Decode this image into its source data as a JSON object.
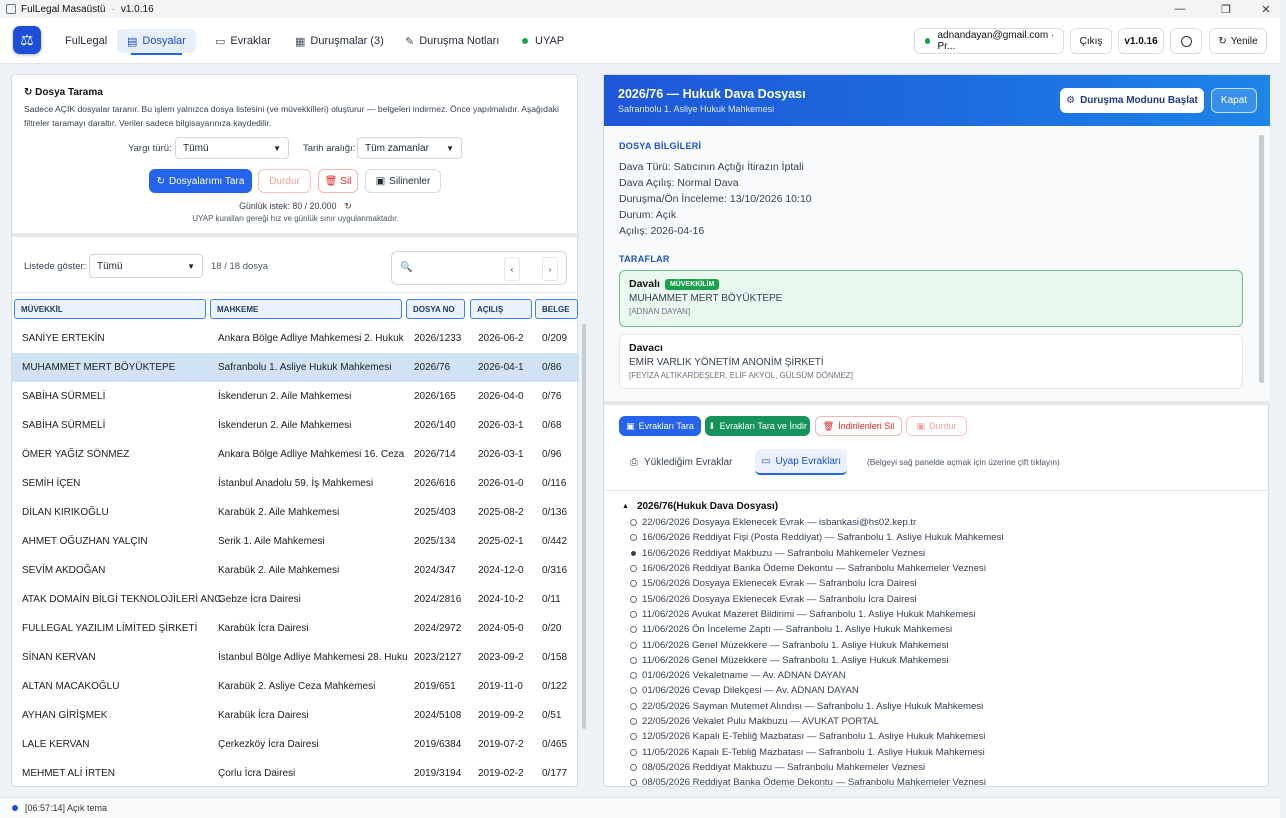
{
  "window": {
    "title": "FulLegal Masaüstü",
    "version": "v1.0.16"
  },
  "nav": {
    "brand": "FulLegal",
    "dosyalar": "Dosyalar",
    "evraklar": "Evraklar",
    "durusmalar": "Duruşmalar (3)",
    "notlar": "Duruşma Notları",
    "uyap": "UYAP",
    "user": "adnandayan@gmail.com · Pr...",
    "logout": "Çıkış",
    "version": "v1.0.16",
    "refresh": "Yenile"
  },
  "scan": {
    "title": "Dosya Tarama",
    "desc": "Sadece AÇIK dosyalar taranır. Bu işlem yalnızca dosya listesini (ve müvekkilleri) oluşturur — belgeleri indirmez. Önce yapılmalıdır. Aşağıdaki filtreler taramayı daraltır. Veriler sadece bilgisayarınıza kaydedilir.",
    "yargi_label": "Yargı türü:",
    "yargi_value": "Tümü",
    "tarih_label": "Tarih aralığı:",
    "tarih_value": "Tüm zamanlar",
    "btn_scan": "Dosyalarımı Tara",
    "btn_stop": "Durdur",
    "btn_delete": "Sil",
    "btn_deleted": "Silinenler",
    "daily": "Günlük istek: 80 / 20.000",
    "rule": "UYAP kuralları gereği hız ve günlük sınır uygulanmaktadır."
  },
  "list": {
    "show_label": "Listede göster:",
    "show_value": "Tümü",
    "count": "18 / 18 dosya",
    "headers": [
      "MÜVEKKİL",
      "MAHKEME",
      "DOSYA NO",
      "AÇILIŞ",
      "BELGE"
    ],
    "rows": [
      [
        "SANİYE ERTEKİN",
        "Ankara Bölge Adliye Mahkemesi 2. Hukuk",
        "2026/1233",
        "2026-06-2",
        "0/209"
      ],
      [
        "MUHAMMET MERT BÖYÜKTEPE",
        "Safranbolu 1. Asliye Hukuk Mahkemesi",
        "2026/76",
        "2026-04-1",
        "0/86"
      ],
      [
        "SABİHA SÜRMELİ",
        "İskenderun 2. Aile Mahkemesi",
        "2026/165",
        "2026-04-0",
        "0/76"
      ],
      [
        "SABİHA SÜRMELİ",
        "İskenderun 2. Aile Mahkemesi",
        "2026/140",
        "2026-03-1",
        "0/68"
      ],
      [
        "ÖMER YAĞIZ SÖNMEZ",
        "Ankara Bölge Adliye Mahkemesi 16. Ceza",
        "2026/714",
        "2026-03-1",
        "0/96"
      ],
      [
        "SEMİH İÇEN",
        "İstanbul Anadolu 59. İş Mahkemesi",
        "2026/616",
        "2026-01-0",
        "0/116"
      ],
      [
        "DİLAN KIRIKOĞLU",
        "Karabük 2. Aile Mahkemesi",
        "2025/403",
        "2025-08-2",
        "0/136"
      ],
      [
        "AHMET OĞUZHAN YALÇIN",
        "Serik 1. Aile Mahkemesi",
        "2025/134",
        "2025-02-1",
        "0/442"
      ],
      [
        "SEVİM AKDOĞAN",
        "Karabük 2. Aile Mahkemesi",
        "2024/347",
        "2024-12-0",
        "0/316"
      ],
      [
        "ATAK DOMAİN BİLGİ TEKNOLOJİLERİ ANC",
        "Gebze İcra Dairesi",
        "2024/2816",
        "2024-10-2",
        "0/11"
      ],
      [
        "FULLEGAL YAZILIM LİMİTED ŞİRKETİ",
        "Karabük İcra Dairesi",
        "2024/2972",
        "2024-05-0",
        "0/20"
      ],
      [
        "SİNAN KERVAN",
        "İstanbul Bölge Adliye Mahkemesi 28. Huku",
        "2023/2127",
        "2023-09-2",
        "0/158"
      ],
      [
        "ALTAN MACAKOĞLU",
        "Karabük 2. Asliye Ceza Mahkemesi",
        "2019/651",
        "2019-11-0",
        "0/122"
      ],
      [
        "AYHAN GİRİŞMEK",
        "Karabük İcra Dairesi",
        "2024/5108",
        "2019-09-2",
        "0/51"
      ],
      [
        "LALE KERVAN",
        "Çerkezköy İcra Dairesi",
        "2019/6384",
        "2019-07-2",
        "0/465"
      ],
      [
        "MEHMET ALİ İRTEN",
        "Çorlu İcra Dairesi",
        "2019/3194",
        "2019-02-2",
        "0/177"
      ]
    ]
  },
  "detail": {
    "title": "2026/76 — Hukuk Dava Dosyası",
    "subtitle": "Safranbolu 1. Asliye Hukuk Mahkemesi",
    "btn_hearing": "Duruşma Modunu Başlat",
    "btn_close": "Kapat",
    "info_header": "DOSYA BİLGİLERİ",
    "info": [
      "Dava Türü: Satıcının Açtığı İtirazın İptali",
      "Dava Açılış: Normal Dava",
      "Duruşma/Ön İnceleme: 13/10/2026 10:10",
      "Durum: Açık",
      "Açılış: 2026-04-16"
    ],
    "parties_header": "TARAFLAR",
    "p1_role": "Davalı",
    "p1_badge": "MÜVEKKİLİM",
    "p1_name": "MUHAMMET MERT BÖYÜKTEPE",
    "p1_rep": "[ADNAN DAYAN]",
    "p2_role": "Davacı",
    "p2_name": "EMİR VARLIK YÖNETİM ANONİM ŞİRKETİ",
    "p2_rep": "[FEYİZA ALTIKARDEŞLER, ELİF AKYOL, GÜLSÜM DÖNMEZ]",
    "btn_scan_docs": "Evrakları Tara",
    "btn_scan_dl": "Evrakları Tara ve İndir",
    "btn_del_dl": "İndirilenleri Sil",
    "btn_stop": "Durdur",
    "tab_uploaded": "Yüklediğim Evraklar",
    "tab_uyap": "Uyap Evrakları",
    "hint": "(Belgeyi sağ panelde açmak için üzerine çift tıklayın)",
    "tree_root": "2026/76(Hukuk Dava Dosyası)",
    "docs": [
      "22/06/2026  Dosyaya Eklenecek Evrak  — isbankasi@hs02.kep.tr",
      "16/06/2026  Reddiyat Fişi (Posta Reddiyat)  — Safranbolu 1. Asliye Hukuk Mahkemesi",
      "16/06/2026  Reddiyat Makbuzu  — Safranbolu Mahkemeler Veznesi",
      "16/06/2026  Reddiyat Banka Ödeme Dekontu  — Safranbolu Mahkemeler Veznesi",
      "15/06/2026  Dosyaya Eklenecek Evrak  — Safranbolu İcra Dairesi",
      "15/06/2026  Dosyaya Eklenecek Evrak  — Safranbolu İcra Dairesi",
      "11/06/2026  Avukat Mazeret Bildirimi  — Safranbolu 1. Asliye Hukuk Mahkemesi",
      "11/06/2026  Ön İnceleme Zaptı  — Safranbolu 1. Asliye Hukuk Mahkemesi",
      "11/06/2026  Genel Müzekkere  — Safranbolu 1. Asliye Hukuk Mahkemesi",
      "11/06/2026  Genel Müzekkere  — Safranbolu 1. Asliye Hukuk Mahkemesi",
      "01/06/2026  Vekaletname  — Av. ADNAN DAYAN",
      "01/06/2026  Cevap Dilekçesi  — Av. ADNAN DAYAN",
      "22/05/2026  Sayman Mutemet Alındısı  — Safranbolu 1. Asliye Hukuk Mahkemesi",
      "22/05/2026  Vekalet Pulu Makbuzu  — AVUKAT PORTAL",
      "12/05/2026  Kapalı E-Tebliğ Mazbatası  — Safranbolu 1. Asliye Hukuk Mahkemesi",
      "11/05/2026  Kapalı E-Tebliğ Mazbatası  — Safranbolu 1. Asliye Hukuk Mahkemesi",
      "08/05/2026  Reddiyat Makbuzu  — Safranbolu Mahkemeler Veznesi",
      "08/05/2026  Reddiyat Banka Ödeme Dekontu  — Safranbolu Mahkemeler Veznesi"
    ]
  },
  "status": {
    "text": "[06:57:14] Açık tema"
  }
}
